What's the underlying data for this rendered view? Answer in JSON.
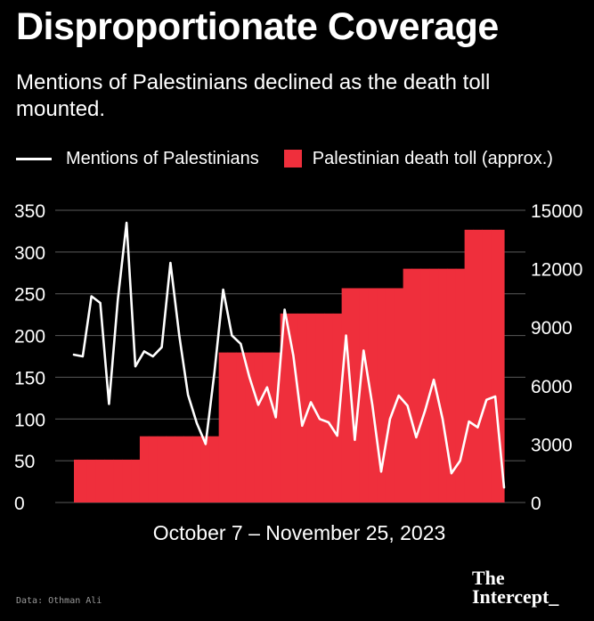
{
  "chart_data": {
    "type": "line+area",
    "title": "Disproportionate Coverage",
    "subtitle": "Mentions of Palestinians declined as the death toll mounted.",
    "xlabel": "October 7 – November 25, 2023",
    "legend": {
      "line_label": "Mentions of Palestinians",
      "area_label": "Palestinian death toll (approx.)"
    },
    "left_axis": {
      "ylim": [
        0,
        350
      ],
      "ticks": [
        0,
        50,
        100,
        150,
        200,
        250,
        300,
        350
      ],
      "tick_labels": [
        "0",
        "50",
        "100",
        "150",
        "200",
        "250",
        "300",
        "350"
      ]
    },
    "right_axis": {
      "ylim": [
        0,
        15000
      ],
      "ticks": [
        0,
        3000,
        6000,
        9000,
        12000,
        15000
      ],
      "tick_labels": [
        "0",
        "3000",
        "6000",
        "9000",
        "12000",
        "15000"
      ]
    },
    "series": [
      {
        "name": "Mentions of Palestinians",
        "axis": "left",
        "color": "#ffffff",
        "values": [
          177,
          175,
          247,
          239,
          118,
          243,
          335,
          163,
          181,
          175,
          186,
          287,
          200,
          129,
          95,
          70,
          155,
          255,
          200,
          190,
          150,
          117,
          138,
          102,
          231,
          176,
          92,
          120,
          100,
          96,
          80,
          200,
          75,
          182,
          117,
          37,
          100,
          128,
          116,
          78,
          110,
          147,
          100,
          35,
          50,
          97,
          90,
          123,
          127,
          18
        ]
      },
      {
        "name": "Palestinian death toll (approx.)",
        "axis": "right",
        "color": "#ef2f3c",
        "values": [
          2200,
          2200,
          2200,
          2200,
          2200,
          2200,
          2200,
          2200,
          3400,
          3400,
          3400,
          3400,
          3400,
          3400,
          3400,
          3400,
          3400,
          7700,
          7700,
          7700,
          7700,
          7700,
          7700,
          7700,
          9700,
          9700,
          9700,
          9700,
          9700,
          9700,
          9700,
          11000,
          11000,
          11000,
          11000,
          11000,
          11000,
          11000,
          12000,
          12000,
          12000,
          12000,
          12000,
          12000,
          12000,
          14000,
          14000,
          14000,
          14000,
          14000
        ]
      }
    ]
  },
  "footer": {
    "source": "Data: Othman Ali",
    "logo_line1": "The",
    "logo_line2": "Intercept_"
  },
  "colors": {
    "background": "#000000",
    "line": "#ffffff",
    "area": "#ef2f3c",
    "text": "#ffffff"
  }
}
